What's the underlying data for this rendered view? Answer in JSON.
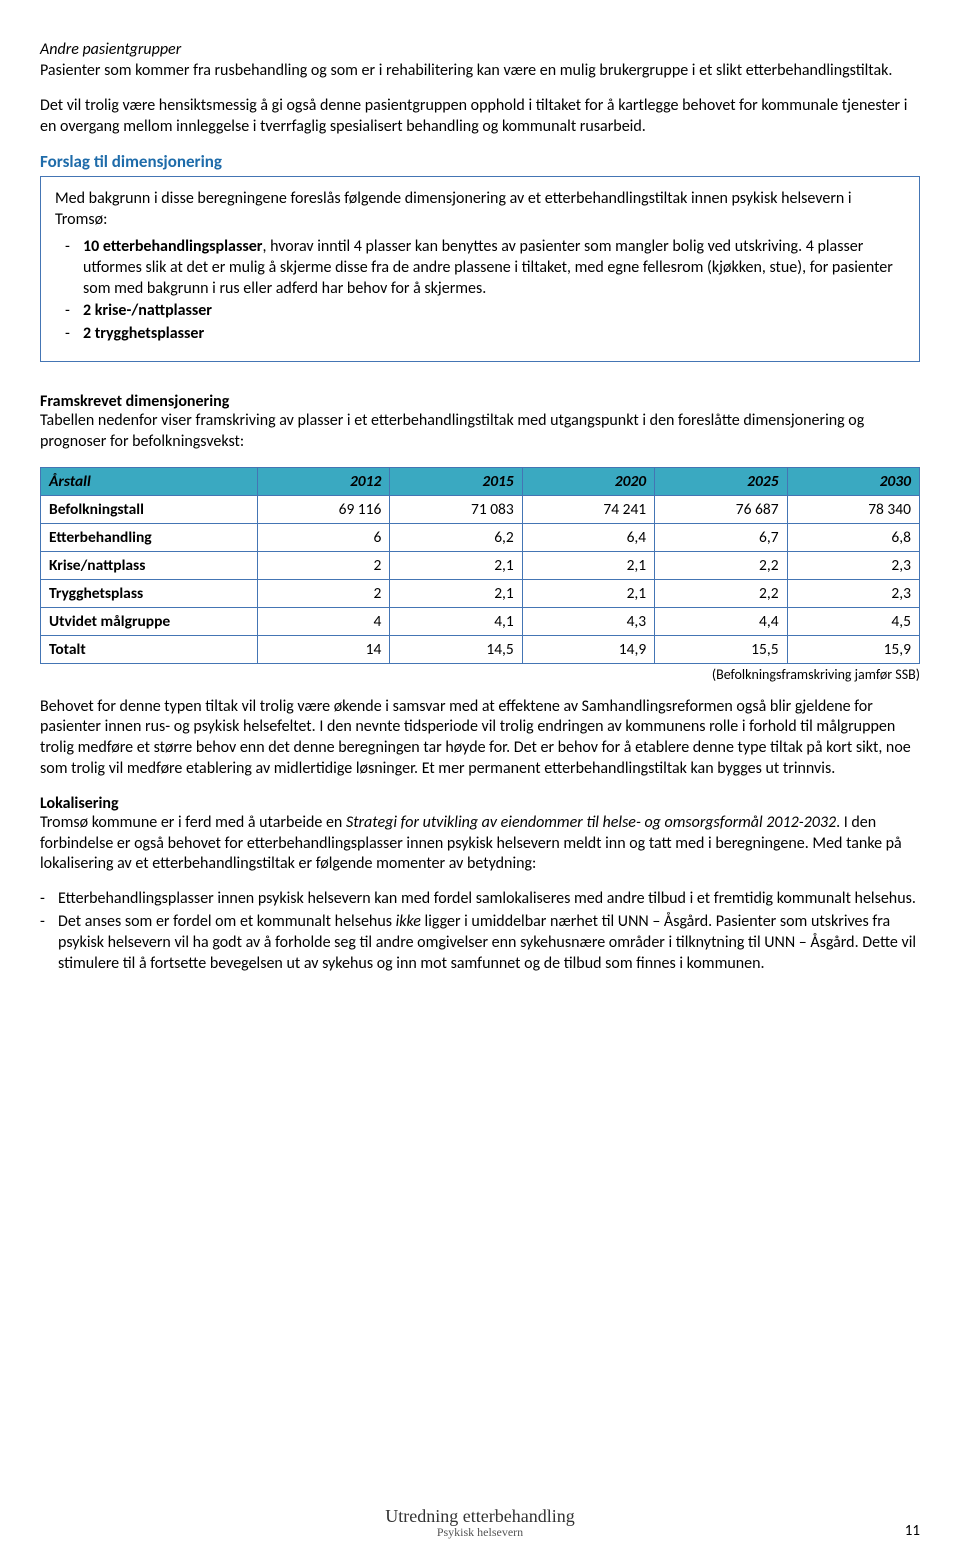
{
  "section1": {
    "title": "Andre pasientgrupper",
    "p1": "Pasienter som kommer fra rusbehandling og som er i rehabilitering kan være en mulig brukergruppe i et slikt etterbehandlingstiltak.",
    "p2": "Det vil trolig være hensiktsmessig å gi også denne pasientgruppen opphold i tiltaket for å kartlegge behovet for kommunale tjenester i en overgang mellom innleggelse i tverrfaglig spesialisert behandling og kommunalt rusarbeid."
  },
  "section2": {
    "title": "Forslag til dimensjonering",
    "intro": "Med bakgrunn i disse beregningene foreslås følgende dimensjonering av et etterbehandlingstiltak innen psykisk helsevern i Tromsø:",
    "bullets": [
      {
        "bold": "10 etterbehandlingsplasser",
        "rest": ", hvorav inntil 4 plasser kan benyttes av pasienter som mangler bolig ved utskriving. 4 plasser utformes slik at det er mulig å skjerme disse fra de andre plassene i tiltaket, med egne fellesrom (kjøkken, stue), for pasienter som med bakgrunn i rus eller adferd har behov for å skjermes."
      },
      {
        "bold": "2 krise-/nattplasser",
        "rest": ""
      },
      {
        "bold": "2 trygghetsplasser",
        "rest": ""
      }
    ]
  },
  "section3": {
    "title": "Framskrevet dimensjonering",
    "intro": "Tabellen nedenfor viser framskriving av plasser i et etterbehandlingstiltak med utgangspunkt i den foreslåtte dimensjonering og prognoser for befolkningsvekst:"
  },
  "table": {
    "headers": [
      "Årstall",
      "2012",
      "2015",
      "2020",
      "2025",
      "2030"
    ],
    "rows": [
      [
        "Befolkningstall",
        "69 116",
        "71 083",
        "74 241",
        "76 687",
        "78 340"
      ],
      [
        "Etterbehandling",
        "6",
        "6,2",
        "6,4",
        "6,7",
        "6,8"
      ],
      [
        "Krise/nattplass",
        "2",
        "2,1",
        "2,1",
        "2,2",
        "2,3"
      ],
      [
        "Trygghetsplass",
        "2",
        "2,1",
        "2,1",
        "2,2",
        "2,3"
      ],
      [
        "Utvidet målgruppe",
        "4",
        "4,1",
        "4,3",
        "4,4",
        "4,5"
      ],
      [
        "Totalt",
        "14",
        "14,5",
        "14,9",
        "15,5",
        "15,9"
      ]
    ],
    "note": "(Befolkningsframskriving jamfør SSB)"
  },
  "section4": {
    "p1": "Behovet for denne typen tiltak vil trolig være økende i samsvar med at effektene av Samhandlingsreformen også blir gjeldene for pasienter innen rus- og psykisk helsefeltet. I den nevnte tidsperiode vil trolig endringen av kommunens rolle i forhold til målgruppen trolig medføre et større behov enn det denne beregningen tar høyde for. Det er behov for å etablere denne type tiltak på kort sikt, noe som trolig vil medføre etablering av midlertidige løsninger. Et mer permanent etterbehandlingstiltak kan bygges ut trinnvis."
  },
  "section5": {
    "title": "Lokalisering",
    "intro_a": "Tromsø kommune er i ferd med å utarbeide en ",
    "intro_italic": "Strategi for utvikling av eiendommer til helse- og omsorgsformål 2012-2032",
    "intro_b": ". I den forbindelse er også behovet for etterbehandlingsplasser innen psykisk helsevern meldt inn og tatt med i beregningene. Med tanke på lokalisering av et etterbehandlingstiltak er følgende momenter av betydning:",
    "bullets": [
      "Etterbehandlingsplasser innen psykisk helsevern kan med fordel samlokaliseres med andre tilbud i et fremtidig kommunalt helsehus.",
      "Det anses som er fordel om et kommunalt helsehus ikke ligger i umiddelbar nærhet til UNN – Åsgård. Pasienter som utskrives fra psykisk helsevern vil ha godt av å forholde seg til andre omgivelser enn sykehusnære områder i tilknytning til UNN – Åsgård. Dette vil stimulere til å fortsette bevegelsen ut av sykehus og inn mot samfunnet og de tilbud som finnes i kommunen."
    ]
  },
  "footer": {
    "line1": "Utredning etterbehandling",
    "line2": "Psykisk helsevern",
    "page": "11"
  }
}
